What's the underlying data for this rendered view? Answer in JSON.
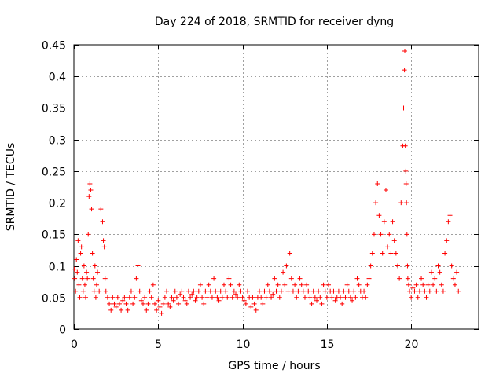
{
  "chart_data": {
    "type": "scatter",
    "title": "Day 224 of 2018, SRMTID for receiver dyng",
    "xlabel": "GPS time / hours",
    "ylabel": "SRMTID / TECUs",
    "xlim": [
      0,
      24
    ],
    "ylim": [
      0,
      0.45
    ],
    "grid": true,
    "marker": "+",
    "x_ticks": [
      {
        "value": 0,
        "label": "0"
      },
      {
        "value": 5,
        "label": "5"
      },
      {
        "value": 10,
        "label": "10"
      },
      {
        "value": 15,
        "label": "15"
      },
      {
        "value": 20,
        "label": "20"
      }
    ],
    "y_ticks": [
      {
        "value": 0,
        "label": "0"
      },
      {
        "value": 0.05,
        "label": "0.05"
      },
      {
        "value": 0.1,
        "label": "0.1"
      },
      {
        "value": 0.15,
        "label": "0.15"
      },
      {
        "value": 0.2,
        "label": "0.2"
      },
      {
        "value": 0.25,
        "label": "0.25"
      },
      {
        "value": 0.3,
        "label": "0.3"
      },
      {
        "value": 0.35,
        "label": "0.35"
      },
      {
        "value": 0.4,
        "label": "0.4"
      },
      {
        "value": 0.45,
        "label": "0.45"
      }
    ],
    "series": [
      {
        "name": "SRMTID",
        "color": "#ff0000",
        "x": [
          0.02,
          0.05,
          0.1,
          0.15,
          0.2,
          0.25,
          0.3,
          0.35,
          0.4,
          0.45,
          0.5,
          0.55,
          0.6,
          0.65,
          0.7,
          0.75,
          0.8,
          0.85,
          0.9,
          0.95,
          1.0,
          1.05,
          1.1,
          1.15,
          1.2,
          1.25,
          1.3,
          1.35,
          1.4,
          1.5,
          1.6,
          1.7,
          1.75,
          1.8,
          1.85,
          1.9,
          2.0,
          2.1,
          2.2,
          2.3,
          2.4,
          2.5,
          2.6,
          2.7,
          2.8,
          2.9,
          3.0,
          3.1,
          3.2,
          3.3,
          3.4,
          3.5,
          3.6,
          3.7,
          3.8,
          3.9,
          4.0,
          4.1,
          4.2,
          4.3,
          4.4,
          4.5,
          4.6,
          4.7,
          4.8,
          4.9,
          5.0,
          5.1,
          5.2,
          5.3,
          5.4,
          5.5,
          5.6,
          5.7,
          5.8,
          5.9,
          6.0,
          6.1,
          6.2,
          6.3,
          6.4,
          6.5,
          6.6,
          6.7,
          6.8,
          6.9,
          7.0,
          7.1,
          7.2,
          7.3,
          7.4,
          7.5,
          7.6,
          7.7,
          7.8,
          7.9,
          8.0,
          8.1,
          8.2,
          8.3,
          8.4,
          8.5,
          8.6,
          8.7,
          8.8,
          8.9,
          9.0,
          9.1,
          9.2,
          9.3,
          9.4,
          9.5,
          9.6,
          9.7,
          9.8,
          9.9,
          10.0,
          10.1,
          10.2,
          10.3,
          10.4,
          10.5,
          10.6,
          10.7,
          10.8,
          10.9,
          11.0,
          11.1,
          11.2,
          11.3,
          11.4,
          11.5,
          11.6,
          11.7,
          11.8,
          11.9,
          12.0,
          12.1,
          12.2,
          12.3,
          12.4,
          12.5,
          12.6,
          12.7,
          12.8,
          12.9,
          13.0,
          13.1,
          13.2,
          13.3,
          13.4,
          13.5,
          13.6,
          13.7,
          13.8,
          13.9,
          14.0,
          14.1,
          14.2,
          14.3,
          14.4,
          14.5,
          14.6,
          14.7,
          14.8,
          14.9,
          15.0,
          15.1,
          15.2,
          15.3,
          15.4,
          15.5,
          15.6,
          15.7,
          15.8,
          15.9,
          16.0,
          16.1,
          16.2,
          16.3,
          16.4,
          16.5,
          16.6,
          16.7,
          16.8,
          16.9,
          17.0,
          17.1,
          17.2,
          17.3,
          17.4,
          17.5,
          17.6,
          17.7,
          17.8,
          17.9,
          18.0,
          18.1,
          18.2,
          18.3,
          18.4,
          18.5,
          18.6,
          18.7,
          18.8,
          18.9,
          19.0,
          19.1,
          19.2,
          19.3,
          19.4,
          19.5,
          19.55,
          19.6,
          19.62,
          19.65,
          19.68,
          19.7,
          19.72,
          19.75,
          19.78,
          19.8,
          19.85,
          19.9,
          20.0,
          20.1,
          20.2,
          20.3,
          20.4,
          20.5,
          20.6,
          20.7,
          20.8,
          20.9,
          21.0,
          21.1,
          21.2,
          21.3,
          21.4,
          21.5,
          21.6,
          21.7,
          21.8,
          21.9,
          22.0,
          22.1,
          22.2,
          22.3,
          22.4,
          22.5,
          22.6,
          22.7,
          22.8
        ],
        "y": [
          0.095,
          0.08,
          0.06,
          0.11,
          0.09,
          0.14,
          0.07,
          0.05,
          0.12,
          0.13,
          0.08,
          0.06,
          0.1,
          0.07,
          0.05,
          0.09,
          0.08,
          0.15,
          0.21,
          0.23,
          0.22,
          0.19,
          0.12,
          0.08,
          0.06,
          0.1,
          0.05,
          0.07,
          0.09,
          0.06,
          0.19,
          0.17,
          0.14,
          0.13,
          0.08,
          0.06,
          0.05,
          0.04,
          0.03,
          0.05,
          0.04,
          0.035,
          0.05,
          0.04,
          0.03,
          0.045,
          0.05,
          0.04,
          0.03,
          0.05,
          0.06,
          0.04,
          0.05,
          0.08,
          0.1,
          0.06,
          0.045,
          0.04,
          0.05,
          0.03,
          0.04,
          0.06,
          0.05,
          0.07,
          0.04,
          0.03,
          0.045,
          0.035,
          0.025,
          0.04,
          0.05,
          0.06,
          0.04,
          0.035,
          0.05,
          0.045,
          0.06,
          0.05,
          0.04,
          0.055,
          0.06,
          0.05,
          0.045,
          0.04,
          0.06,
          0.05,
          0.055,
          0.06,
          0.045,
          0.05,
          0.06,
          0.07,
          0.05,
          0.04,
          0.06,
          0.05,
          0.07,
          0.06,
          0.05,
          0.08,
          0.06,
          0.05,
          0.045,
          0.06,
          0.05,
          0.07,
          0.06,
          0.05,
          0.08,
          0.07,
          0.05,
          0.06,
          0.055,
          0.05,
          0.07,
          0.06,
          0.05,
          0.045,
          0.04,
          0.06,
          0.05,
          0.035,
          0.05,
          0.04,
          0.03,
          0.05,
          0.06,
          0.05,
          0.04,
          0.06,
          0.05,
          0.07,
          0.06,
          0.05,
          0.055,
          0.08,
          0.06,
          0.07,
          0.05,
          0.06,
          0.09,
          0.07,
          0.1,
          0.06,
          0.12,
          0.08,
          0.06,
          0.07,
          0.05,
          0.06,
          0.08,
          0.07,
          0.06,
          0.05,
          0.07,
          0.06,
          0.05,
          0.04,
          0.06,
          0.05,
          0.045,
          0.06,
          0.05,
          0.04,
          0.07,
          0.06,
          0.05,
          0.07,
          0.06,
          0.05,
          0.06,
          0.045,
          0.05,
          0.06,
          0.05,
          0.04,
          0.06,
          0.05,
          0.07,
          0.06,
          0.05,
          0.045,
          0.06,
          0.05,
          0.08,
          0.07,
          0.06,
          0.05,
          0.06,
          0.05,
          0.07,
          0.08,
          0.1,
          0.12,
          0.15,
          0.2,
          0.23,
          0.18,
          0.15,
          0.12,
          0.17,
          0.22,
          0.13,
          0.15,
          0.12,
          0.17,
          0.14,
          0.12,
          0.1,
          0.08,
          0.2,
          0.29,
          0.35,
          0.41,
          0.44,
          0.29,
          0.25,
          0.23,
          0.2,
          0.15,
          0.1,
          0.08,
          0.07,
          0.06,
          0.05,
          0.065,
          0.06,
          0.07,
          0.05,
          0.06,
          0.08,
          0.07,
          0.06,
          0.05,
          0.07,
          0.06,
          0.09,
          0.07,
          0.08,
          0.06,
          0.1,
          0.09,
          0.07,
          0.06,
          0.12,
          0.14,
          0.17,
          0.18,
          0.1,
          0.08,
          0.07,
          0.09,
          0.06
        ]
      }
    ]
  }
}
